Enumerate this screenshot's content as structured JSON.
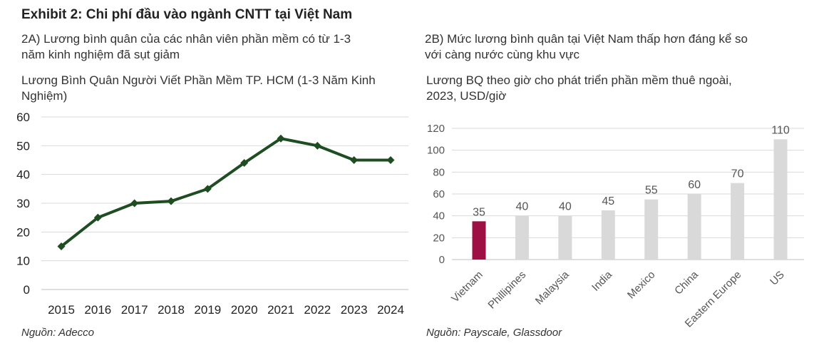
{
  "exhibit_title": "Exhibit 2: Chi phí đầu vào ngành CNTT tại Việt Nam",
  "left_panel": {
    "heading_line1": "2A) Lương bình quân của các nhân viên phần mềm có từ 1-3",
    "heading_line2": "năm kinh nghiệm đã sụt giảm",
    "source": "Nguồn: Adecco"
  },
  "right_panel": {
    "heading_line1": "2B) Mức lương bình quân tại Việt Nam thấp hơn đáng kể so",
    "heading_line2": "với càng nước cùng khu vực",
    "source": "Nguồn: Payscale, Glassdoor"
  },
  "colors": {
    "line": "#1e4d22",
    "highlight_bar": "#9e1044",
    "bar": "#d9d9d9",
    "grid": "#d9d9d9",
    "axis": "#bfbfbf"
  },
  "chart_data": [
    {
      "type": "line",
      "title_line1": "Lương Bình Quân Người Viết Phần Mềm TP. HCM (1-3 Năm Kinh",
      "title_line2": "Nghiệm)",
      "x": [
        "2015",
        "2016",
        "2017",
        "2018",
        "2019",
        "2020",
        "2021",
        "2022",
        "2023",
        "2024"
      ],
      "series": [
        {
          "name": "Lương bình quân",
          "values": [
            15,
            25,
            30,
            30.7,
            35,
            44,
            52.5,
            50,
            45,
            45
          ]
        }
      ],
      "ylim": [
        0,
        60
      ],
      "yticks": [
        "0",
        "10",
        "20",
        "30",
        "40",
        "50",
        "60"
      ],
      "grid": true
    },
    {
      "type": "bar",
      "title_line1": "Lương BQ theo giờ cho phát triển phần mềm thuê ngoài,",
      "title_line2": "2023, USD/giờ",
      "categories": [
        "Vietnam",
        "Phillipines",
        "Malaysia",
        "India",
        "Mexico",
        "China",
        "Eastern Europe",
        "US"
      ],
      "values": [
        35,
        40,
        40,
        45,
        55,
        60,
        70,
        110
      ],
      "value_labels": [
        "35",
        "40",
        "40",
        "45",
        "55",
        "60",
        "70",
        "110"
      ],
      "highlight_index": 0,
      "ylim": [
        0,
        120
      ],
      "yticks": [
        "0",
        "20",
        "40",
        "60",
        "80",
        "100",
        "120"
      ],
      "grid": true
    }
  ]
}
